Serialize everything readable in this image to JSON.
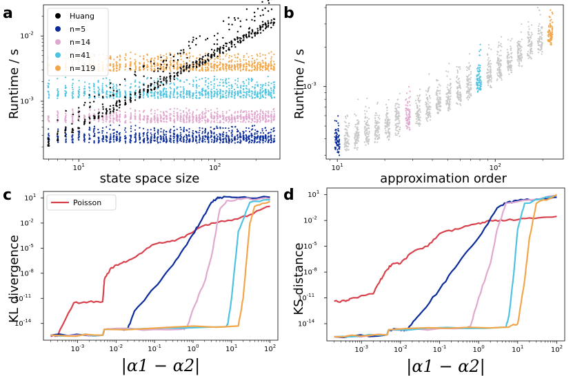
{
  "colors": {
    "Huang": "#000000",
    "n5": "#0a2b99",
    "n14": "#e0a8cf",
    "n41": "#4cc3e0",
    "n119": "#f2a649",
    "grey": "#c8c8c8",
    "Poisson": "#d8404b"
  },
  "chart_data": [
    {
      "panel": "a",
      "type": "scatter",
      "xlabel": "state space size",
      "ylabel": "Runtime / s",
      "xscale": "log",
      "yscale": "log",
      "xlim": [
        5.5,
        300
      ],
      "ylim": [
        0.00013,
        0.03
      ],
      "xticks": [
        {
          "v": 10,
          "label": "10",
          "exp": "1"
        },
        {
          "v": 100,
          "label": "10",
          "exp": "2"
        }
      ],
      "yticks": [
        {
          "v": 0.001,
          "label": "10",
          "exp": "-3"
        },
        {
          "v": 0.01,
          "label": "10",
          "exp": "-2"
        }
      ],
      "legend": {
        "placement": "top-left",
        "entries": [
          "Huang",
          "n=5",
          "n=14",
          "n=41",
          "n=119"
        ]
      },
      "series": [
        {
          "name": "Huang",
          "color_key": "Huang",
          "x_range": [
            6,
            280
          ],
          "y_start": 0.00024,
          "y_end": 0.017
        },
        {
          "name": "n=5",
          "color_key": "n5",
          "x_range": [
            6,
            280
          ],
          "y_level": 0.00027,
          "y_spread_up": 0.00014
        },
        {
          "name": "n=14",
          "color_key": "n14",
          "x_range": [
            6,
            280
          ],
          "y_level": 0.00055,
          "y_spread_up": 0.0002
        },
        {
          "name": "n=41",
          "color_key": "n41",
          "x_range": [
            6,
            280
          ],
          "y_level": 0.0013,
          "y_spread_up": 0.001
        },
        {
          "name": "n=119",
          "color_key": "n119",
          "x_range": [
            6,
            280
          ],
          "y_level": 0.0034,
          "y_spread_up": 0.0022
        }
      ]
    },
    {
      "panel": "b",
      "type": "scatter",
      "xlabel": "approximation order",
      "ylabel": "Runtime / s",
      "xscale": "log",
      "yscale": "log",
      "xlim": [
        8.5,
        270
      ],
      "ylim": [
        0.00028,
        0.0042
      ],
      "xticks": [
        {
          "v": 10,
          "label": "10",
          "exp": "1"
        },
        {
          "v": 100,
          "label": "10",
          "exp": "2"
        }
      ],
      "yticks": [
        {
          "v": 0.001,
          "label": "10",
          "exp": "-3"
        }
      ],
      "orders": [
        10,
        11.5,
        13.3,
        15.4,
        17.9,
        20.8,
        24.1,
        28,
        32.5,
        37.7,
        43.7,
        50.7,
        58.8,
        68.2,
        79,
        91.7,
        106.3,
        123.3,
        143,
        165.9,
        192.4,
        223
      ],
      "order_base_runtime": [
        0.00031,
        0.00032,
        0.00034,
        0.00036,
        0.00038,
        0.00041,
        0.00044,
        0.00048,
        0.00052,
        0.00056,
        0.00061,
        0.00067,
        0.00074,
        0.00082,
        0.00091,
        0.00101,
        0.00113,
        0.00127,
        0.00143,
        0.00162,
        0.00183,
        0.00205
      ],
      "highlighted": [
        {
          "order": 10,
          "color_key": "n5"
        },
        {
          "order": 28,
          "color_key": "n14"
        },
        {
          "order": 79,
          "color_key": "n41"
        },
        {
          "order": 223,
          "color_key": "n119"
        }
      ]
    },
    {
      "panel": "c",
      "type": "line",
      "xlabel": "|α1 − α2|",
      "ylabel": "KL divergence",
      "xscale": "log",
      "yscale": "log",
      "xlim": [
        0.00013,
        160
      ],
      "ylim": [
        1e-16,
        60
      ],
      "xticks": [
        {
          "v": 0.001,
          "label": "10",
          "exp": "-3"
        },
        {
          "v": 0.01,
          "label": "10",
          "exp": "-2"
        },
        {
          "v": 0.1,
          "label": "10",
          "exp": "-1"
        },
        {
          "v": 1,
          "label": "10",
          "exp": "0"
        },
        {
          "v": 10,
          "label": "10",
          "exp": "1"
        },
        {
          "v": 100,
          "label": "10",
          "exp": "2"
        }
      ],
      "yticks": [
        {
          "v": 1e-14,
          "label": "10",
          "exp": "-14"
        },
        {
          "v": 1e-11,
          "label": "10",
          "exp": "-11"
        },
        {
          "v": 1e-08,
          "label": "10",
          "exp": "-8"
        },
        {
          "v": 1e-05,
          "label": "10",
          "exp": "-5"
        },
        {
          "v": 0.01,
          "label": "10",
          "exp": "-2"
        },
        {
          "v": 10,
          "label": "10",
          "exp": "1"
        }
      ],
      "legend": {
        "placement": "top-left",
        "entries": [
          "Poisson"
        ]
      },
      "series": [
        {
          "name": "Poisson",
          "color_key": "Poisson",
          "x": [
            0.0002,
            0.0003,
            0.0008,
            0.002,
            0.0045,
            0.005,
            0.007,
            0.01,
            0.02,
            0.04,
            0.1,
            0.25,
            0.6,
            1.5,
            3,
            10,
            30,
            100
          ],
          "y": [
            3e-16,
            3e-16,
            3e-12,
            4e-12,
            4e-12,
            2e-09,
            3e-08,
            1e-07,
            3e-07,
            2e-06,
            3e-05,
            6e-05,
            0.0002,
            0.003,
            0.01,
            0.02,
            0.1,
            1
          ]
        },
        {
          "name": "n=5",
          "color_key": "n5",
          "x": [
            0.0002,
            0.0045,
            0.005,
            0.02,
            0.03,
            0.1,
            0.3,
            0.8,
            1.5,
            3,
            4,
            5,
            10,
            100
          ],
          "y": [
            4e-16,
            4e-16,
            2e-15,
            2e-15,
            3e-13,
            2e-10,
            1e-07,
            0.0001,
            0.01,
            3,
            8,
            12,
            12,
            12
          ]
        },
        {
          "name": "n=14",
          "color_key": "n14",
          "x": [
            0.0002,
            0.0045,
            0.005,
            0.5,
            0.7,
            1,
            2,
            3,
            5,
            8,
            20,
            100
          ],
          "y": [
            4e-16,
            4e-16,
            2e-15,
            2e-15,
            3e-15,
            5e-13,
            1e-09,
            1e-06,
            0.5,
            5,
            8,
            8
          ]
        },
        {
          "name": "n=41",
          "color_key": "n41",
          "x": [
            0.0002,
            0.0045,
            0.005,
            7,
            8,
            10,
            15,
            30,
            100
          ],
          "y": [
            4e-16,
            4e-16,
            2e-15,
            4e-15,
            8e-15,
            1e-11,
            0.001,
            3,
            6
          ]
        },
        {
          "name": "n=119",
          "color_key": "n119",
          "x": [
            0.0002,
            0.0045,
            0.005,
            15,
            20,
            25,
            30,
            40,
            100
          ],
          "y": [
            4e-16,
            4e-16,
            2e-15,
            5e-15,
            1e-11,
            1e-06,
            0.01,
            1,
            4
          ]
        }
      ]
    },
    {
      "panel": "d",
      "type": "line",
      "xlabel": "|α1 − α2|",
      "ylabel": "KS distance",
      "xscale": "log",
      "yscale": "log",
      "xlim": [
        0.00013,
        160
      ],
      "ylim": [
        1e-16,
        60
      ],
      "xticks": [
        {
          "v": 0.001,
          "label": "10",
          "exp": "-3"
        },
        {
          "v": 0.01,
          "label": "10",
          "exp": "-2"
        },
        {
          "v": 0.1,
          "label": "10",
          "exp": "-1"
        },
        {
          "v": 1,
          "label": "10",
          "exp": "0"
        },
        {
          "v": 10,
          "label": "10",
          "exp": "1"
        },
        {
          "v": 100,
          "label": "10",
          "exp": "2"
        }
      ],
      "yticks": [
        {
          "v": 1e-14,
          "label": "10",
          "exp": "-14"
        },
        {
          "v": 1e-11,
          "label": "10",
          "exp": "-11"
        },
        {
          "v": 1e-08,
          "label": "10",
          "exp": "-8"
        },
        {
          "v": 1e-05,
          "label": "10",
          "exp": "-5"
        },
        {
          "v": 0.01,
          "label": "10",
          "exp": "-2"
        },
        {
          "v": 10,
          "label": "10",
          "exp": "1"
        }
      ],
      "series": [
        {
          "name": "Poisson",
          "color_key": "Poisson",
          "x": [
            0.0002,
            0.0004,
            0.0005,
            0.002,
            0.003,
            0.004,
            0.006,
            0.01,
            0.02,
            0.05,
            0.1,
            0.3,
            1,
            2,
            5,
            20,
            100
          ],
          "y": [
            4e-12,
            4e-12,
            8e-12,
            3e-11,
            1e-09,
            1e-08,
            8e-08,
            1e-07,
            2e-06,
            1e-05,
            0.0003,
            0.001,
            0.005,
            0.01,
            0.01,
            0.02,
            0.03
          ]
        },
        {
          "name": "n=5",
          "color_key": "n5",
          "x": [
            0.0002,
            0.0045,
            0.005,
            0.012,
            0.015,
            0.03,
            0.1,
            0.3,
            1,
            3,
            5,
            10,
            30,
            100
          ],
          "y": [
            3e-16,
            5e-16,
            2e-15,
            2e-15,
            2e-15,
            1e-13,
            1e-10,
            1e-07,
            0.0001,
            0.3,
            1,
            2,
            3,
            5
          ]
        },
        {
          "name": "n=14",
          "color_key": "n14",
          "x": [
            0.0002,
            0.0045,
            0.005,
            0.5,
            0.6,
            1,
            2,
            3,
            5,
            100
          ],
          "y": [
            3e-16,
            5e-16,
            2e-15,
            3e-15,
            4e-15,
            1e-11,
            1e-07,
            0.001,
            1,
            8
          ]
        },
        {
          "name": "n=41",
          "color_key": "n41",
          "x": [
            0.0002,
            0.0045,
            0.005,
            5,
            6,
            8,
            10,
            15,
            100
          ],
          "y": [
            3e-16,
            5e-16,
            2e-15,
            4e-15,
            1e-13,
            1e-08,
            0.001,
            1,
            9
          ]
        },
        {
          "name": "n=119",
          "color_key": "n119",
          "x": [
            0.0002,
            0.0045,
            0.005,
            6,
            10,
            15,
            20,
            30,
            100
          ],
          "y": [
            3e-16,
            5e-16,
            2e-15,
            4e-15,
            1e-14,
            1e-09,
            0.0001,
            1,
            10
          ]
        }
      ]
    }
  ],
  "panel_labels": [
    "a",
    "b",
    "c",
    "d"
  ]
}
